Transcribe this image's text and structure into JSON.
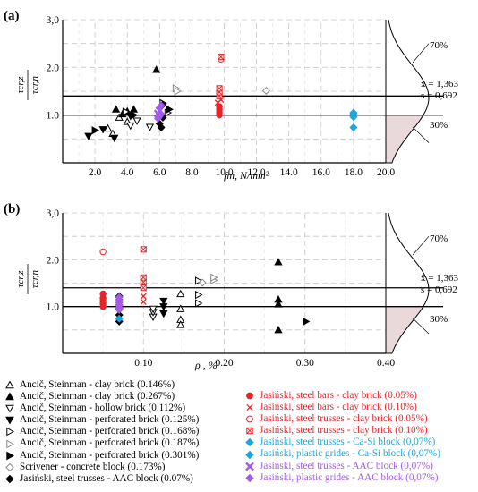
{
  "colors": {
    "black": "#000000",
    "red": "#e8242b",
    "cyan": "#1aa7e0",
    "purple": "#a35be6",
    "gray": "#888888",
    "grid": "#c8c8c8",
    "shade": "#ead9db"
  },
  "panel_labels": {
    "a": "(a)",
    "b": "(b)"
  },
  "y_label": {
    "num": "τcr,z",
    "den": "τcr,n"
  },
  "x_labels": {
    "a": "fm, N/mm²",
    "b": "ρ , %"
  },
  "stats": {
    "mean": "x̄ = 1,363",
    "s": "s = 0,692",
    "upper_pct": "70%",
    "lower_pct": "30%"
  },
  "legend": [
    {
      "marker": "tri-up-open",
      "color": "black",
      "text": "Ancič, Steinman - clay brick (0.146%)"
    },
    {
      "marker": "tri-up",
      "color": "black",
      "text": "Ancič, Steinman - clay brick (0.267%)"
    },
    {
      "marker": "tri-down-open",
      "color": "black",
      "text": "Ancič, Steinman - hollow brick (0.112%)"
    },
    {
      "marker": "tri-down",
      "color": "black",
      "text": "Ancič, Steinman - perforated brick (0.125%)"
    },
    {
      "marker": "tri-right-open",
      "color": "black",
      "text": "Ancič, Steinman - perforated brick (0.168%)"
    },
    {
      "marker": "tri-right-open",
      "color": "gray",
      "text": "Ancič, Steinman - perforated brick (0.187%)"
    },
    {
      "marker": "tri-right",
      "color": "black",
      "text": "Ancič, Steinman - perforated brick (0.301%)"
    },
    {
      "marker": "diamond-open",
      "color": "gray",
      "text": "Scrivener - concrete block (0.173%)"
    },
    {
      "marker": "diamond",
      "color": "black",
      "text": "Jasiński, steel trusses - AAC block (0.07%)"
    },
    {
      "marker": "circle",
      "color": "red",
      "text": "Jasiński, steel bars - clay brick (0.05%)"
    },
    {
      "marker": "x",
      "color": "red",
      "text": "Jasiński, steel bars - clay brick (0.10%)"
    },
    {
      "marker": "circle-open",
      "color": "red",
      "text": "Jasiński, steel trusses - clay brick (0.05%)"
    },
    {
      "marker": "square-x",
      "color": "red",
      "text": "Jasiński, steel trusses - clay brick (0.10%)"
    },
    {
      "marker": "diamond",
      "color": "cyan",
      "text": "Jasiński, steel trusses - Ca-Si block (0,07%)"
    },
    {
      "marker": "diamond",
      "color": "cyan",
      "text": "Jasiński, plastic grides - Ca-Si block (0,07%)"
    },
    {
      "marker": "x-bold",
      "color": "purple",
      "text": "Jasiński, steel trusses - AAC block (0,07%)"
    },
    {
      "marker": "diamond",
      "color": "purple",
      "text": "Jasiński, plastic grides - AAC block (0,07%)"
    }
  ],
  "chart_data": [
    {
      "type": "scatter",
      "panel": "(a)",
      "xlabel": "fm, N/mm²",
      "ylabel": "τcr,z / τcr,n",
      "xlim": [
        0,
        20
      ],
      "ylim": [
        0,
        3
      ],
      "xticks": [
        "2.0",
        "4.0",
        "6.0",
        "8.0",
        "10.0",
        "12.0",
        "14.0",
        "16.0",
        "18.0",
        "20.0"
      ],
      "yticks": [
        "1.0",
        "2.0",
        "3,0"
      ],
      "hlines": [
        1.0,
        1.4
      ],
      "grid": true,
      "series": [
        {
          "marker": "tri-up-open",
          "color": "black",
          "points": [
            [
              2.8,
              0.72
            ],
            [
              3.1,
              0.61
            ],
            [
              3.5,
              0.95
            ],
            [
              4.0,
              0.86
            ]
          ]
        },
        {
          "marker": "tri-up",
          "color": "black",
          "points": [
            [
              3.3,
              1.12
            ],
            [
              3.7,
              1.02
            ],
            [
              4.0,
              1.08
            ],
            [
              4.4,
              1.12
            ],
            [
              5.8,
              1.95
            ]
          ]
        },
        {
          "marker": "tri-down-open",
          "color": "black",
          "points": [
            [
              4.2,
              0.78
            ],
            [
              4.6,
              0.88
            ],
            [
              5.4,
              0.75
            ]
          ]
        },
        {
          "marker": "tri-down",
          "color": "black",
          "points": [
            [
              1.6,
              0.56
            ],
            [
              2.5,
              0.7
            ],
            [
              3.2,
              0.52
            ],
            [
              4.2,
              0.98
            ]
          ]
        },
        {
          "marker": "tri-right-open",
          "color": "black",
          "points": [
            [
              3.9,
              1.07
            ],
            [
              6.2,
              1.25
            ],
            [
              6.5,
              1.05
            ]
          ]
        },
        {
          "marker": "tri-right-open",
          "color": "gray",
          "points": [
            [
              7.0,
              1.56
            ],
            [
              7.1,
              1.5
            ]
          ]
        },
        {
          "marker": "tri-right",
          "color": "black",
          "points": [
            [
              2.0,
              0.68
            ],
            [
              4.4,
              1.0
            ],
            [
              6.6,
              1.12
            ]
          ]
        },
        {
          "marker": "diamond-open",
          "color": "gray",
          "points": [
            [
              12.6,
              1.51
            ]
          ]
        },
        {
          "marker": "diamond",
          "color": "black",
          "points": [
            [
              6.0,
              0.82
            ],
            [
              6.1,
              0.74
            ],
            [
              6.2,
              0.95
            ],
            [
              6.2,
              1.22
            ]
          ]
        },
        {
          "marker": "circle",
          "color": "red",
          "points": [
            [
              9.7,
              1.0
            ],
            [
              9.7,
              1.06
            ],
            [
              9.7,
              1.12
            ],
            [
              9.7,
              1.18
            ]
          ]
        },
        {
          "marker": "x",
          "color": "red",
          "points": [
            [
              9.6,
              1.26
            ],
            [
              9.8,
              1.32
            ]
          ]
        },
        {
          "marker": "circle-open",
          "color": "red",
          "points": [
            [
              9.8,
              2.17
            ]
          ]
        },
        {
          "marker": "square-x",
          "color": "red",
          "points": [
            [
              9.7,
              1.4
            ],
            [
              9.7,
              1.48
            ],
            [
              9.7,
              1.56
            ],
            [
              9.8,
              2.22
            ]
          ]
        },
        {
          "marker": "diamond",
          "color": "cyan",
          "points": [
            [
              18.0,
              0.74
            ],
            [
              18.0,
              0.96
            ],
            [
              18.0,
              1.03
            ],
            [
              18.0,
              1.05
            ]
          ]
        },
        {
          "marker": "x-bold",
          "color": "purple",
          "points": [
            [
              5.9,
              1.03
            ],
            [
              6.0,
              1.09
            ]
          ]
        },
        {
          "marker": "diamond",
          "color": "purple",
          "points": [
            [
              5.9,
              0.93
            ],
            [
              6.0,
              0.98
            ],
            [
              6.1,
              1.02
            ],
            [
              6.0,
              1.15
            ],
            [
              6.1,
              1.2
            ]
          ]
        }
      ]
    },
    {
      "type": "scatter",
      "panel": "(b)",
      "xlabel": "ρ , %",
      "ylabel": "τcr,z / τcr,n",
      "xlim": [
        0,
        0.4
      ],
      "ylim": [
        0,
        3
      ],
      "xticks": [
        "0.10",
        "0.20",
        "0.30",
        "0.40"
      ],
      "yticks": [
        "1.0",
        "2.0",
        "3,0"
      ],
      "hlines": [
        1.0,
        1.4
      ],
      "grid": true,
      "series": [
        {
          "marker": "tri-up-open",
          "color": "black",
          "points": [
            [
              0.146,
              0.72
            ],
            [
              0.146,
              0.61
            ],
            [
              0.146,
              0.95
            ],
            [
              0.146,
              1.27
            ]
          ]
        },
        {
          "marker": "tri-up",
          "color": "black",
          "points": [
            [
              0.267,
              1.95
            ],
            [
              0.267,
              1.15
            ],
            [
              0.267,
              0.5
            ],
            [
              0.267,
              1.05
            ]
          ]
        },
        {
          "marker": "tri-down-open",
          "color": "black",
          "points": [
            [
              0.112,
              0.78
            ],
            [
              0.112,
              0.88
            ],
            [
              0.112,
              0.95
            ]
          ]
        },
        {
          "marker": "tri-down",
          "color": "black",
          "points": [
            [
              0.125,
              0.85
            ],
            [
              0.125,
              1.0
            ],
            [
              0.125,
              1.12
            ]
          ]
        },
        {
          "marker": "tri-right-open",
          "color": "black",
          "points": [
            [
              0.168,
              1.07
            ],
            [
              0.168,
              1.25
            ],
            [
              0.168,
              1.55
            ]
          ]
        },
        {
          "marker": "tri-right-open",
          "color": "gray",
          "points": [
            [
              0.187,
              1.56
            ],
            [
              0.187,
              1.62
            ]
          ]
        },
        {
          "marker": "tri-right",
          "color": "black",
          "points": [
            [
              0.301,
              0.68
            ]
          ]
        },
        {
          "marker": "diamond-open",
          "color": "gray",
          "points": [
            [
              0.173,
              1.51
            ]
          ]
        },
        {
          "marker": "diamond",
          "color": "black",
          "points": [
            [
              0.07,
              0.68
            ],
            [
              0.07,
              0.74
            ],
            [
              0.07,
              0.82
            ],
            [
              0.07,
              0.95
            ],
            [
              0.07,
              1.22
            ]
          ]
        },
        {
          "marker": "circle",
          "color": "red",
          "points": [
            [
              0.05,
              1.0
            ],
            [
              0.05,
              1.06
            ],
            [
              0.05,
              1.12
            ],
            [
              0.05,
              1.18
            ],
            [
              0.05,
              1.27
            ]
          ]
        },
        {
          "marker": "x",
          "color": "red",
          "points": [
            [
              0.1,
              1.1
            ],
            [
              0.1,
              1.22
            ]
          ]
        },
        {
          "marker": "circle-open",
          "color": "red",
          "points": [
            [
              0.05,
              2.17
            ]
          ]
        },
        {
          "marker": "square-x",
          "color": "red",
          "points": [
            [
              0.1,
              1.4
            ],
            [
              0.1,
              1.52
            ],
            [
              0.1,
              1.62
            ],
            [
              0.1,
              2.22
            ]
          ]
        },
        {
          "marker": "diamond",
          "color": "cyan",
          "points": [
            [
              0.07,
              0.74
            ],
            [
              0.07,
              0.96
            ]
          ]
        },
        {
          "marker": "x-bold",
          "color": "purple",
          "points": [
            [
              0.07,
              1.03
            ],
            [
              0.07,
              1.09
            ]
          ]
        },
        {
          "marker": "diamond",
          "color": "purple",
          "points": [
            [
              0.07,
              0.93
            ],
            [
              0.07,
              0.98
            ],
            [
              0.07,
              1.15
            ],
            [
              0.07,
              1.2
            ]
          ]
        }
      ]
    }
  ]
}
